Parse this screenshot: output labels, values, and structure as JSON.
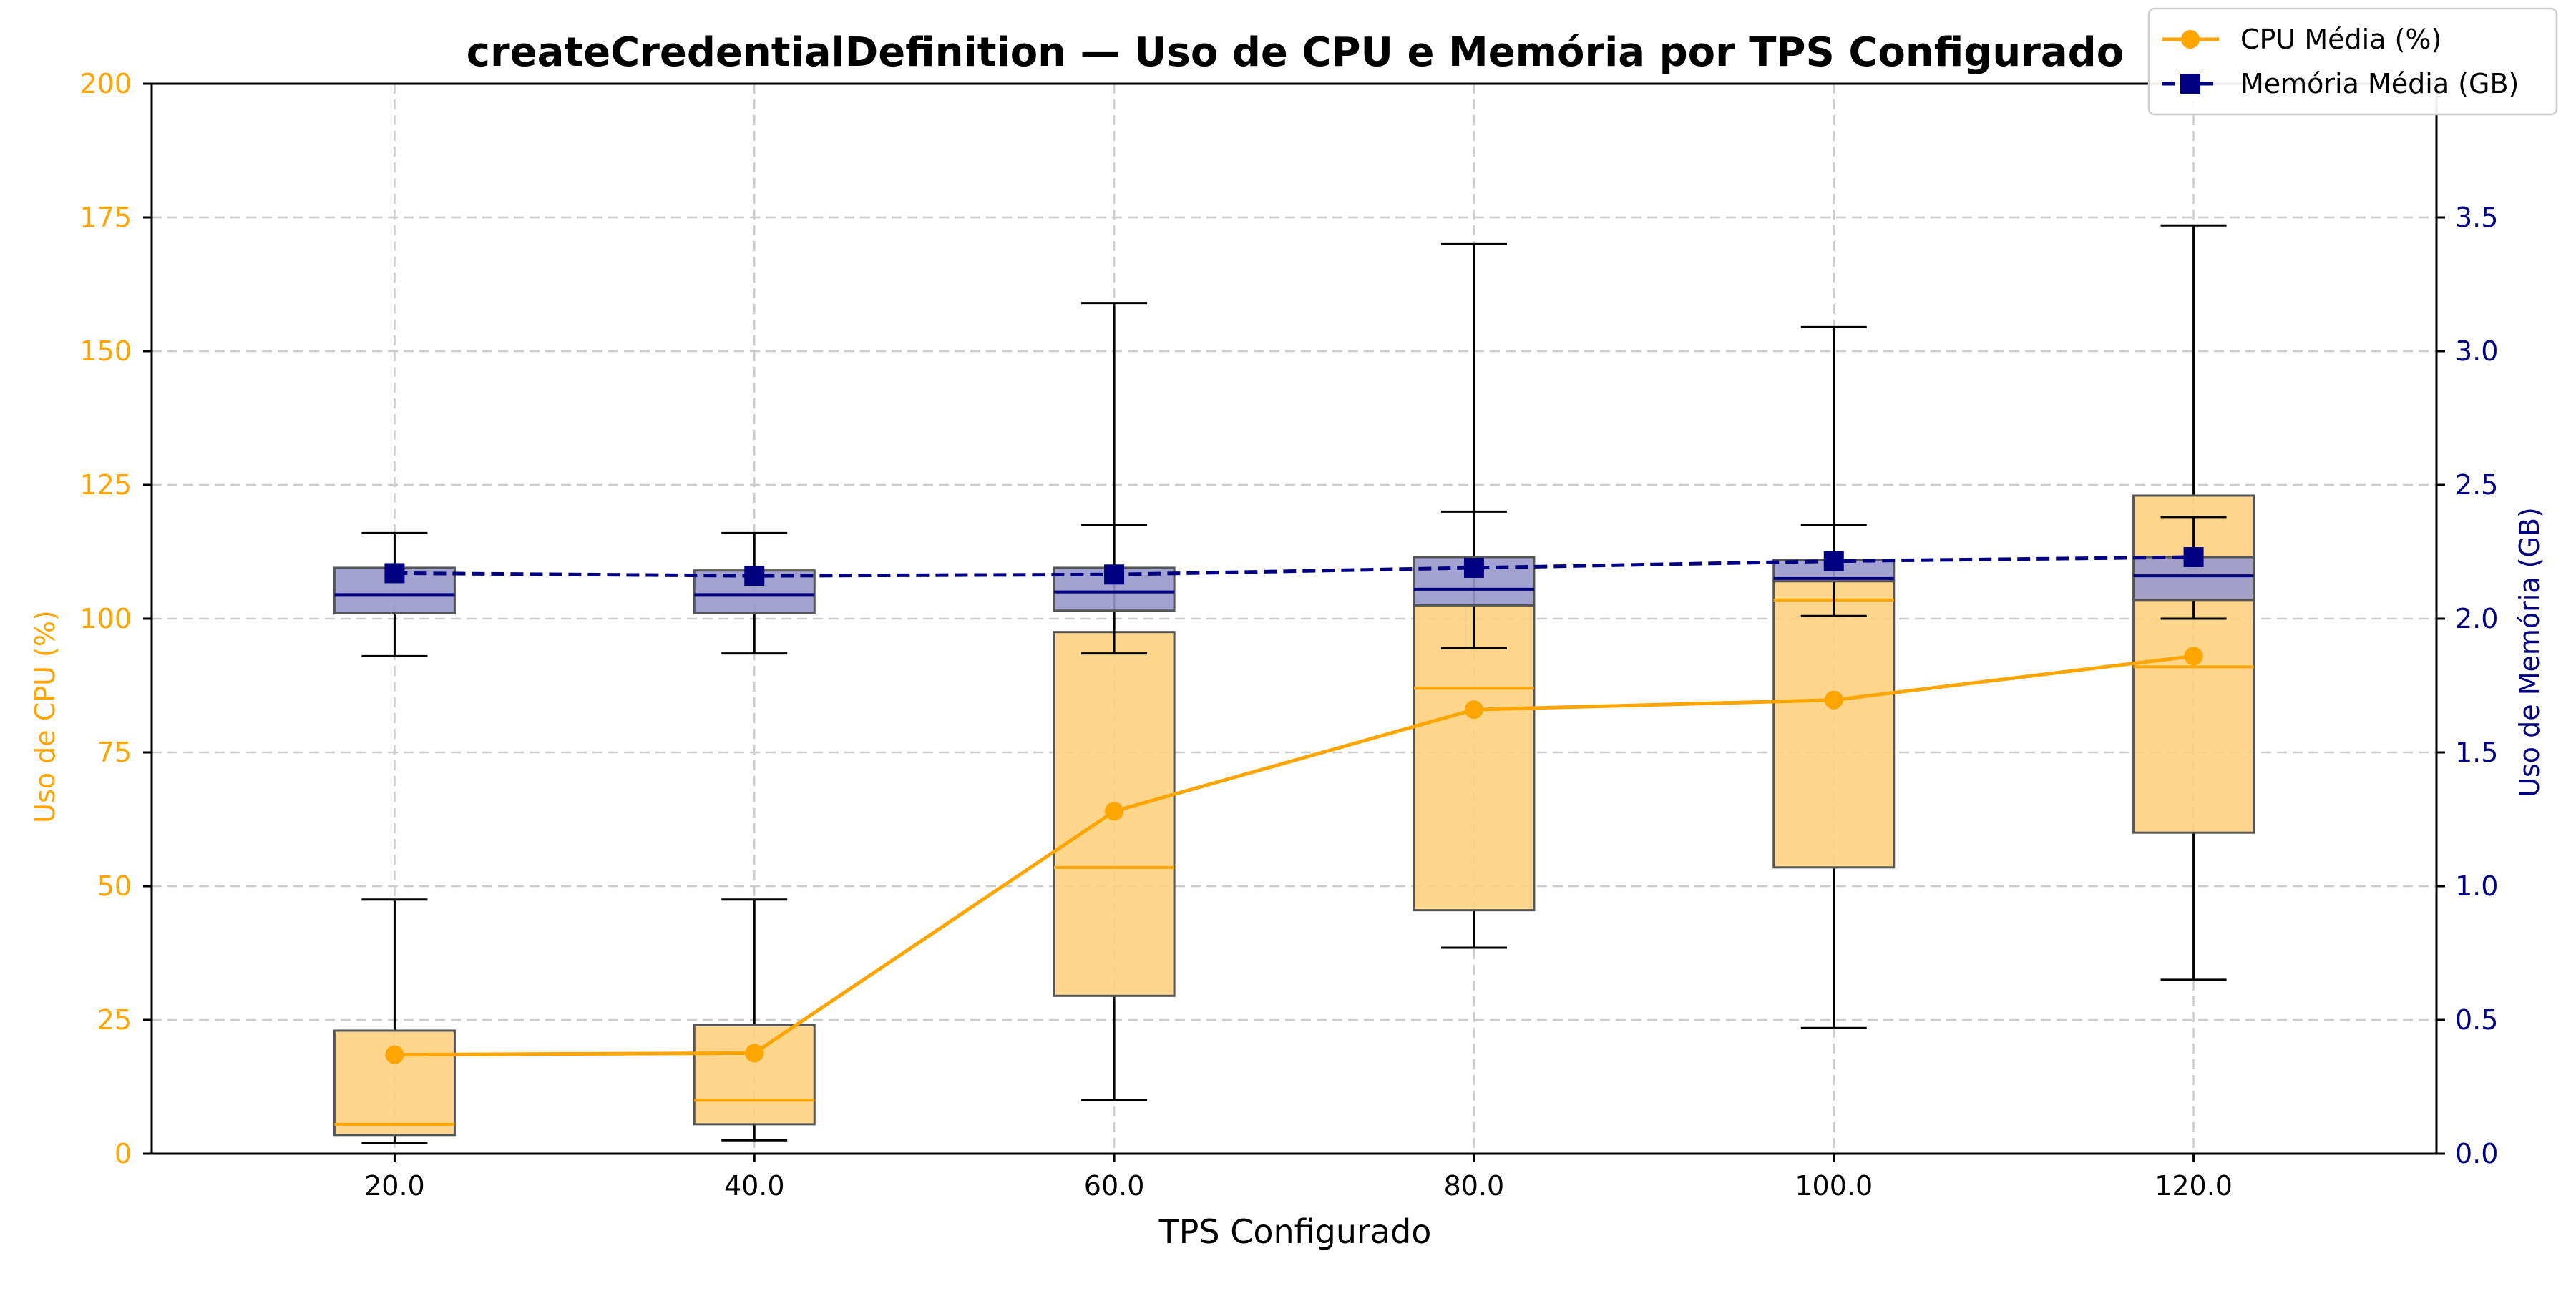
{
  "chart_data": {
    "type": "box+line",
    "title": "createCredentialDefinition — Uso de CPU e Memória por TPS Configurado",
    "xlabel": "TPS Configurado",
    "ylabel_left": "Uso de CPU (%)",
    "ylabel_right": "Uso de Memória (GB)",
    "x": [
      20.0,
      40.0,
      60.0,
      80.0,
      100.0,
      120.0
    ],
    "x_tick_labels": [
      "20.0",
      "40.0",
      "60.0",
      "80.0",
      "100.0",
      "120.0"
    ],
    "xlim": [
      6.5,
      133.5
    ],
    "ylim_left": [
      0,
      200
    ],
    "ylim_right": [
      0,
      4.0
    ],
    "y_ticks_left": [
      "0",
      "25",
      "50",
      "75",
      "100",
      "125",
      "150",
      "175",
      "200"
    ],
    "y_ticks_right": [
      "0.0",
      "0.5",
      "1.0",
      "1.5",
      "2.0",
      "2.5",
      "3.0",
      "3.5"
    ],
    "grid": true,
    "legend_position": "top-right",
    "colors": {
      "cpu": "#ffa500",
      "cpu_box_fill": "#ffd27f",
      "memory": "#000080",
      "memory_box_fill": "#9999cc",
      "whisker": "#000000",
      "box_edge": "#555555",
      "grid": "#cccccc"
    },
    "series": [
      {
        "name": "CPU Média (%)",
        "axis": "left",
        "style": "solid-circle",
        "values": [
          18.5,
          18.8,
          64.0,
          83.0,
          84.8,
          93.0
        ],
        "boxes": [
          {
            "whislo": 2.0,
            "q1": 3.5,
            "med": 5.5,
            "q3": 23.0,
            "whishi": 47.5
          },
          {
            "whislo": 2.5,
            "q1": 5.5,
            "med": 10.0,
            "q3": 24.0,
            "whishi": 47.5
          },
          {
            "whislo": 10.0,
            "q1": 29.5,
            "med": 53.5,
            "q3": 97.5,
            "whishi": 159.0
          },
          {
            "whislo": 38.5,
            "q1": 45.5,
            "med": 87.0,
            "q3": 102.5,
            "whishi": 170.0
          },
          {
            "whislo": 23.5,
            "q1": 53.5,
            "med": 103.5,
            "q3": 107.0,
            "whishi": 154.5
          },
          {
            "whislo": 32.5,
            "q1": 60.0,
            "med": 91.0,
            "q3": 123.0,
            "whishi": 173.5
          }
        ]
      },
      {
        "name": "Memória Média (GB)",
        "axis": "right",
        "style": "dashed-square",
        "values": [
          2.17,
          2.16,
          2.165,
          2.19,
          2.215,
          2.23
        ],
        "boxes": [
          {
            "whislo": 1.86,
            "q1": 2.02,
            "med": 2.09,
            "q3": 2.19,
            "whishi": 2.32
          },
          {
            "whislo": 1.87,
            "q1": 2.02,
            "med": 2.09,
            "q3": 2.18,
            "whishi": 2.32
          },
          {
            "whislo": 1.87,
            "q1": 2.03,
            "med": 2.1,
            "q3": 2.19,
            "whishi": 2.35
          },
          {
            "whislo": 1.89,
            "q1": 2.05,
            "med": 2.11,
            "q3": 2.23,
            "whishi": 2.4
          },
          {
            "whislo": 2.01,
            "q1": 2.14,
            "med": 2.15,
            "q3": 2.22,
            "whishi": 2.35
          },
          {
            "whislo": 2.0,
            "q1": 2.07,
            "med": 2.16,
            "q3": 2.23,
            "whishi": 2.38
          }
        ]
      }
    ]
  }
}
